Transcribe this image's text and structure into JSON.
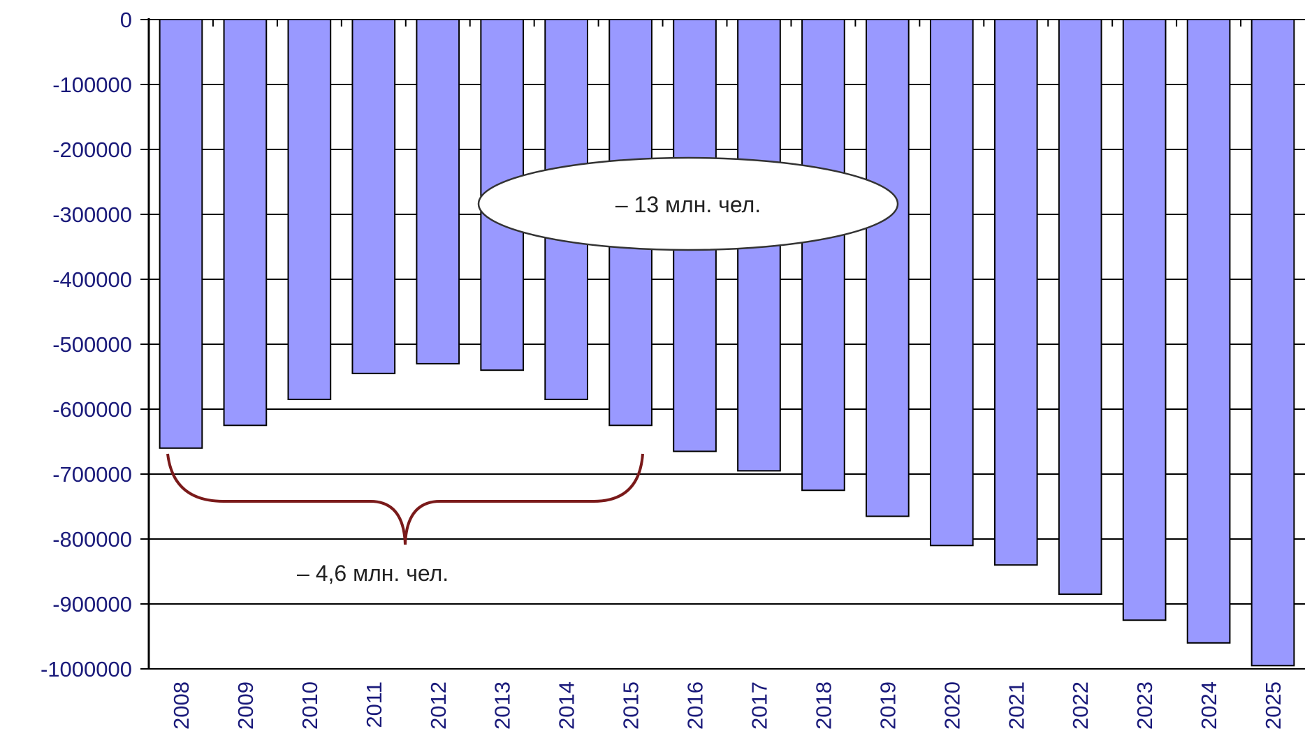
{
  "chart_data": {
    "type": "bar",
    "categories": [
      "2008",
      "2009",
      "2010",
      "2011",
      "2012",
      "2013",
      "2014",
      "2015",
      "2016",
      "2017",
      "2018",
      "2019",
      "2020",
      "2021",
      "2022",
      "2023",
      "2024",
      "2025"
    ],
    "values": [
      -660000,
      -625000,
      -585000,
      -545000,
      -530000,
      -540000,
      -585000,
      -625000,
      -665000,
      -695000,
      -725000,
      -765000,
      -810000,
      -840000,
      -885000,
      -925000,
      -960000,
      -995000
    ],
    "title": "",
    "xlabel": "",
    "ylabel": "",
    "ylim": [
      -1000000,
      0
    ],
    "yticks": [
      "0",
      "-100000",
      "-200000",
      "-300000",
      "-400000",
      "-500000",
      "-600000",
      "-700000",
      "-800000",
      "-900000",
      "-1000000"
    ],
    "grid": true,
    "bar_color": "#9999ff",
    "annotations": {
      "ellipse_label": "– 13 млн. чел.",
      "brace_label": "– 4,6 млн. чел.",
      "brace_color": "#7a1a1a"
    }
  }
}
